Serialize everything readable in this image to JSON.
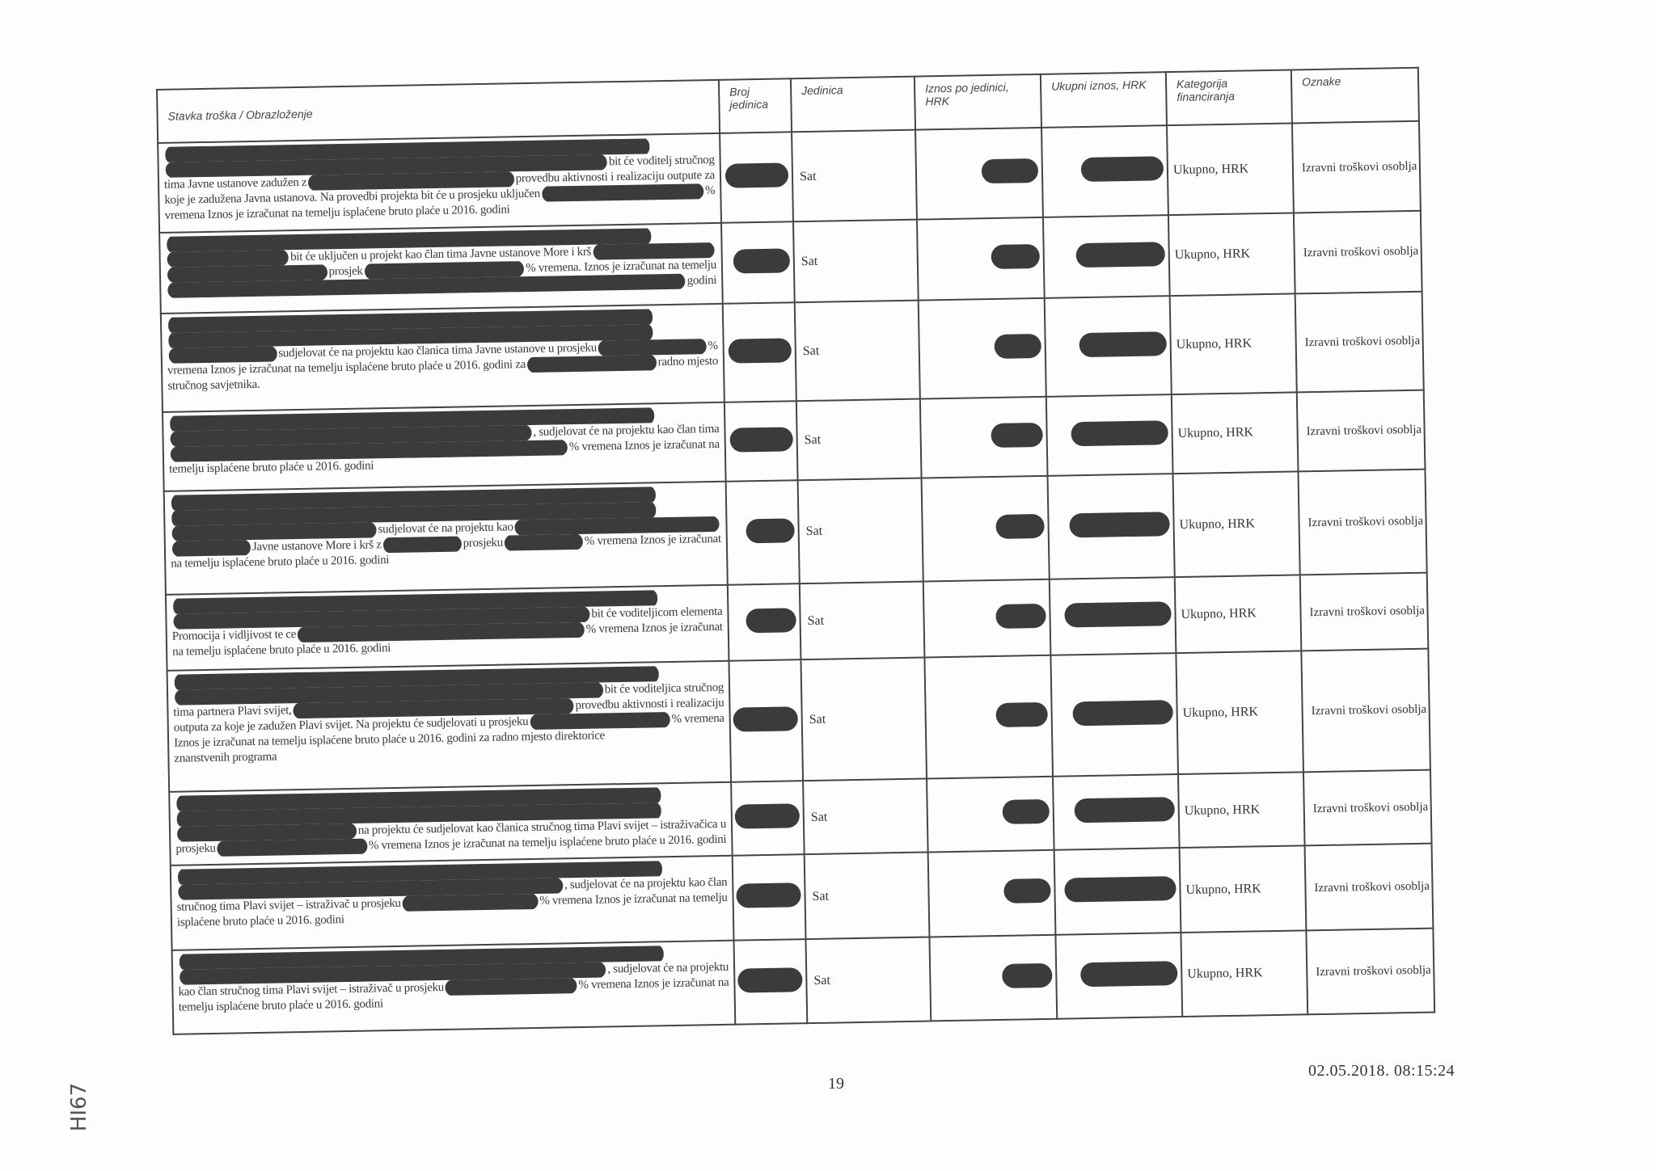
{
  "table": {
    "headers": [
      "Stavka troška / Obrazloženje",
      "Broj jedinica",
      "Jedinica",
      "Iznos po jedinici, HRK",
      "Ukupni iznos, HRK",
      "Kategorija financiranja",
      "Oznake"
    ],
    "rows": [
      {
        "lines": [
          [
            null
          ],
          [
            null,
            "bit će voditelj stručnog"
          ],
          [
            "tima Javne ustanove zadužen z",
            null,
            "provedbu aktivnosti i realizaciju outpute za"
          ],
          [
            "koje je zadužena Javna ustanova. Na provedbi projekta bit će u prosjeku uključen",
            null,
            "%"
          ],
          [
            "vremena Iznos je izračunat na temelju isplaćene bruto plaće u 2016. godini"
          ]
        ],
        "unit": "Sat",
        "category": "Ukupno, HRK",
        "tag": "Izravni troškovi osoblja"
      },
      {
        "lines": [
          [
            null
          ],
          [
            null,
            "bit će uključen u projekt kao član tima Javne ustanove More i krš",
            null
          ],
          [
            null,
            "prosjek",
            null,
            "% vremena. Iznos je izračunat na temelju"
          ],
          [
            null,
            "godini"
          ]
        ],
        "unit": "Sat",
        "category": "Ukupno, HRK",
        "tag": "Izravni troškovi osoblja"
      },
      {
        "lines": [
          [
            null
          ],
          [
            null
          ],
          [
            null,
            "sudjelovat će na projektu kao članica tima Javne ustanove u prosjeku",
            null,
            "%"
          ],
          [
            "vremena Iznos je izračunat na temelju isplaćene bruto plaće u 2016. godini za",
            null,
            "radno mjesto"
          ],
          [
            "stručnog savjetnika."
          ]
        ],
        "unit": "Sat",
        "category": "Ukupno, HRK",
        "tag": "Izravni troškovi osoblja"
      },
      {
        "lines": [
          [
            null
          ],
          [
            null,
            ", sudjelovat će na projektu kao član tima"
          ],
          [
            null,
            "% vremena Iznos je izračunat na"
          ],
          [
            "temelju isplaćene bruto plaće u 2016. godini"
          ]
        ],
        "unit": "Sat",
        "category": "Ukupno, HRK",
        "tag": "Izravni troškovi osoblja"
      },
      {
        "lines": [
          [
            null
          ],
          [
            null
          ],
          [
            null,
            "sudjelovat će na projektu kao",
            null
          ],
          [
            null,
            "Javne ustanove More i krš z",
            null,
            "prosjeku",
            null,
            "% vremena  Iznos je izračunat"
          ],
          [
            "na temelju isplaćene bruto plaće u 2016. godini"
          ]
        ],
        "unit": "Sat",
        "category": "Ukupno, HRK",
        "tag": "Izravni troškovi osoblja"
      },
      {
        "lines": [
          [
            null
          ],
          [
            null,
            "bit će voditeljicom elementa"
          ],
          [
            "Promocija i vidljivost te ce",
            null,
            "% vremena  Iznos je izračunat"
          ],
          [
            "na temelju isplaćene bruto plaće u 2016. godini"
          ]
        ],
        "unit": "Sat",
        "category": "Ukupno, HRK",
        "tag": "Izravni troškovi osoblja"
      },
      {
        "lines": [
          [
            null
          ],
          [
            null,
            "bit će voditeljica stručnog"
          ],
          [
            "tima partnera Plavi svijet,",
            null,
            "provedbu aktivnosti i realizaciju"
          ],
          [
            "outputa za koje je zadužen Plavi svijet. Na projektu će sudjelovati u prosjeku",
            null,
            "% vremena"
          ],
          [
            "Iznos je izračunat na temelju isplaćene bruto plaće u 2016. godini za radno mjesto direktorice"
          ],
          [
            "znanstvenih programa"
          ]
        ],
        "unit": "Sat",
        "category": "Ukupno, HRK",
        "tag": "Izravni troškovi osoblja"
      },
      {
        "lines": [
          [
            null
          ],
          [
            null
          ],
          [
            null,
            "na projektu će sudjelovat kao članica stručnog tima Plavi svijet – istraživačica u"
          ],
          [
            "prosjeku",
            null,
            "% vremena Iznos je izračunat na temelju isplaćene bruto plaće u 2016. godini"
          ]
        ],
        "unit": "Sat",
        "category": "Ukupno, HRK",
        "tag": "Izravni troškovi osoblja"
      },
      {
        "lines": [
          [
            null
          ],
          [
            null,
            ", sudjelovat će na projektu kao član"
          ],
          [
            "stručnog tima Plavi svijet – istraživač u prosjeku",
            null,
            "% vremena  Iznos je izračunat na temelju"
          ],
          [
            "isplaćene bruto plaće u 2016. godini"
          ]
        ],
        "unit": "Sat",
        "category": "Ukupno, HRK",
        "tag": "Izravni troškovi osoblja"
      },
      {
        "lines": [
          [
            null
          ],
          [
            null,
            ", sudjelovat će na projektu"
          ],
          [
            "kao član stručnog tima Plavi svijet – istraživač u prosjeku",
            null,
            "% vremena Iznos je izračunat na"
          ],
          [
            "temelju isplaćene bruto plaće u 2016. godini"
          ]
        ],
        "unit": "Sat",
        "category": "Ukupno, HRK",
        "tag": "Izravni troškovi osoblja"
      }
    ]
  },
  "footer": {
    "page_number": "19",
    "timestamp": "02.05.2018.  08:15:24"
  },
  "margin_note": "HI67",
  "colors": {
    "redaction": "#3b3b3b",
    "ink": "#333333"
  }
}
